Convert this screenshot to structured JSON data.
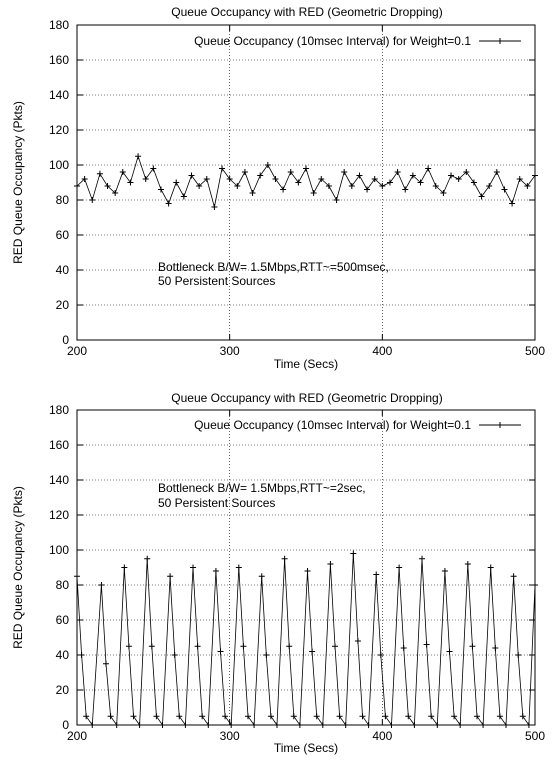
{
  "chart_data": [
    {
      "type": "line",
      "title": "Queue Occupancy with RED (Geometric Dropping)",
      "xlabel": "Time (Secs)",
      "ylabel": "RED Queue Occupancy (Pkts)",
      "xlim": [
        200,
        500
      ],
      "ylim": [
        0,
        180
      ],
      "xticks": [
        200,
        300,
        400,
        500
      ],
      "yticks": [
        0,
        20,
        40,
        60,
        80,
        100,
        120,
        140,
        160,
        180
      ],
      "grid": true,
      "legend_position": "top-right",
      "annotation": [
        "Bottleneck B/W= 1.5Mbps,RTT~=500msec,",
        "50 Persistent Sources"
      ],
      "series": [
        {
          "name": "Queue Occupancy (10msec Interval) for Weight=0.1",
          "marker": "plus",
          "x": [
            200,
            205,
            210,
            215,
            220,
            225,
            230,
            235,
            240,
            245,
            250,
            255,
            260,
            265,
            270,
            275,
            280,
            285,
            290,
            295,
            300,
            305,
            310,
            315,
            320,
            325,
            330,
            335,
            340,
            345,
            350,
            355,
            360,
            365,
            370,
            375,
            380,
            385,
            390,
            395,
            400,
            405,
            410,
            415,
            420,
            425,
            430,
            435,
            440,
            445,
            450,
            455,
            460,
            465,
            470,
            475,
            480,
            485,
            490,
            495,
            500
          ],
          "y": [
            88,
            92,
            80,
            95,
            88,
            84,
            96,
            90,
            105,
            92,
            98,
            86,
            78,
            90,
            82,
            94,
            88,
            92,
            76,
            98,
            92,
            88,
            96,
            84,
            94,
            100,
            92,
            86,
            96,
            90,
            98,
            84,
            92,
            88,
            80,
            96,
            88,
            94,
            86,
            92,
            88,
            90,
            96,
            86,
            94,
            90,
            98,
            88,
            84,
            94,
            92,
            96,
            90,
            82,
            88,
            96,
            86,
            78,
            92,
            88,
            94
          ]
        }
      ]
    },
    {
      "type": "line",
      "title": "Queue Occupancy with RED (Geometric Dropping)",
      "xlabel": "Time (Secs)",
      "ylabel": "RED Queue Occupancy (Pkts)",
      "xlim": [
        200,
        500
      ],
      "ylim": [
        0,
        180
      ],
      "xticks": [
        200,
        300,
        400,
        500
      ],
      "yticks": [
        0,
        20,
        40,
        60,
        80,
        100,
        120,
        140,
        160,
        180
      ],
      "grid": true,
      "legend_position": "top-right",
      "annotation": [
        "Bottleneck B/W= 1.5Mbps,RTT~=2sec,",
        "50 Persistent Sources"
      ],
      "series": [
        {
          "name": "Queue Occupancy (10msec Interval) for Weight=0.1",
          "marker": "plus",
          "x": [
            200,
            203,
            206,
            210,
            216,
            219,
            222,
            226,
            231,
            234,
            237,
            241,
            246,
            249,
            252,
            256,
            261,
            264,
            267,
            271,
            276,
            279,
            282,
            286,
            291,
            294,
            297,
            301,
            306,
            309,
            312,
            316,
            321,
            324,
            327,
            331,
            336,
            339,
            342,
            346,
            351,
            354,
            357,
            361,
            366,
            369,
            372,
            376,
            381,
            384,
            387,
            391,
            396,
            399,
            402,
            406,
            411,
            414,
            417,
            421,
            426,
            429,
            432,
            436,
            441,
            444,
            447,
            451,
            456,
            459,
            462,
            466,
            471,
            474,
            477,
            481,
            486,
            489,
            492,
            496,
            500
          ],
          "y": [
            85,
            40,
            5,
            0,
            80,
            35,
            5,
            0,
            90,
            45,
            5,
            0,
            95,
            45,
            5,
            0,
            85,
            40,
            5,
            0,
            90,
            45,
            5,
            0,
            88,
            42,
            5,
            0,
            90,
            45,
            5,
            0,
            85,
            40,
            5,
            0,
            95,
            45,
            5,
            0,
            88,
            42,
            5,
            0,
            92,
            45,
            5,
            0,
            98,
            48,
            5,
            0,
            86,
            40,
            5,
            0,
            90,
            44,
            5,
            0,
            95,
            46,
            5,
            0,
            88,
            42,
            5,
            0,
            92,
            45,
            5,
            0,
            90,
            44,
            5,
            0,
            85,
            40,
            5,
            0,
            80
          ]
        }
      ]
    }
  ]
}
